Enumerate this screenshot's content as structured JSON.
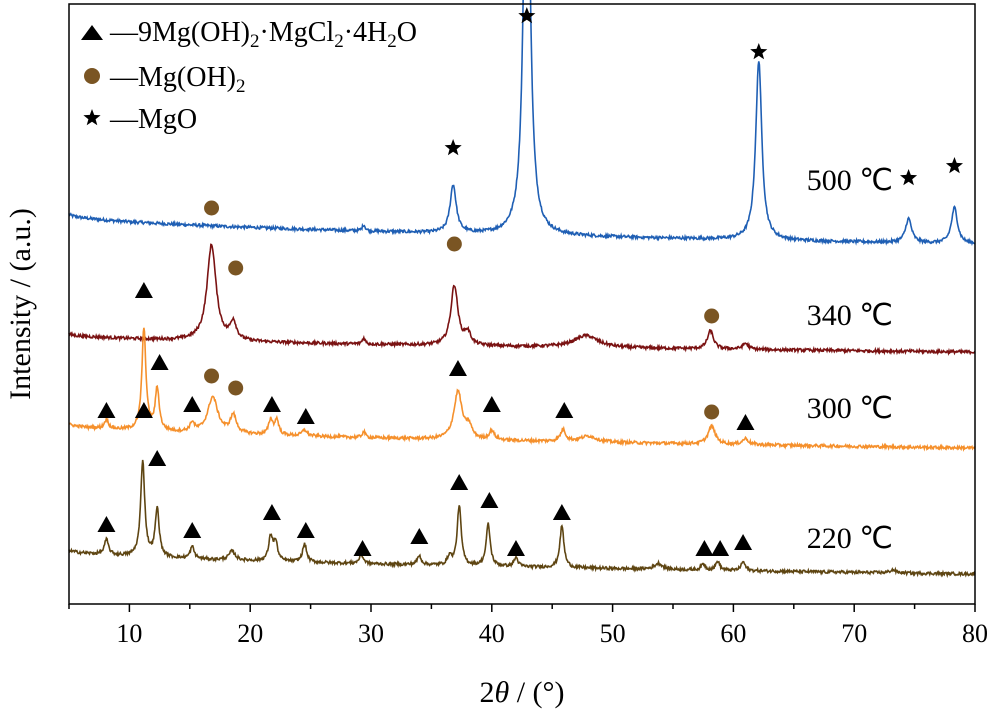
{
  "chart_data": {
    "type": "line",
    "xlabel_prefix": "2",
    "xlabel_var": "θ",
    "xlabel_suffix": " / (°)",
    "ylabel": "Intensity / (a.u.)",
    "xlim": [
      5,
      80
    ],
    "xticks": [
      10,
      20,
      30,
      40,
      50,
      60,
      70,
      80
    ],
    "ylim": [
      0,
      100
    ],
    "legend": {
      "position": "top-left",
      "entries": [
        {
          "marker": "triangle",
          "text": "—9Mg(OH)",
          "sub1": "2",
          "mid": "·MgCl",
          "sub2": "2",
          "mid2": "·4H",
          "sub3": "2",
          "end": "O"
        },
        {
          "marker": "circle",
          "text": "—Mg(OH)",
          "sub1": "2"
        },
        {
          "marker": "star",
          "text": "—MgO"
        }
      ]
    },
    "colors": {
      "500": "#1f5fb4",
      "340": "#7a1212",
      "300": "#f5902c",
      "220": "#5e4512",
      "circle_marker": "#7a5523"
    },
    "series": [
      {
        "name": "500 ℃",
        "label": "500 ℃",
        "color_key": "500",
        "baseline_start": 65,
        "baseline_end": 60,
        "peaks": [
          [
            36.8,
            8,
            0.3
          ],
          [
            42.9,
            80,
            0.3
          ],
          [
            62.1,
            30,
            0.3
          ],
          [
            74.5,
            4,
            0.3
          ],
          [
            78.3,
            6,
            0.3
          ],
          [
            29.4,
            1,
            0.15
          ]
        ],
        "markers": [
          {
            "type": "star",
            "x": 36.8,
            "y": 76
          },
          {
            "type": "star",
            "x": 42.9,
            "y": 98
          },
          {
            "type": "star",
            "x": 62.1,
            "y": 92
          },
          {
            "type": "star",
            "x": 74.5,
            "y": 71
          },
          {
            "type": "star",
            "x": 78.3,
            "y": 73
          }
        ]
      },
      {
        "name": "340 ℃",
        "label": "340 ℃",
        "color_key": "340",
        "baseline_start": 45,
        "baseline_end": 42,
        "peaks": [
          [
            16.8,
            16,
            0.45
          ],
          [
            18.6,
            3,
            0.3
          ],
          [
            36.9,
            10,
            0.35
          ],
          [
            38.0,
            2,
            0.3
          ],
          [
            47.8,
            2,
            1.2
          ],
          [
            58.1,
            3,
            0.3
          ],
          [
            61.0,
            1,
            0.3
          ],
          [
            29.4,
            1,
            0.15
          ]
        ],
        "markers": [
          {
            "type": "circle",
            "x": 16.8,
            "y": 66
          },
          {
            "type": "circle",
            "x": 18.8,
            "y": 56
          },
          {
            "type": "circle",
            "x": 36.9,
            "y": 60
          },
          {
            "type": "circle",
            "x": 58.2,
            "y": 48
          }
        ]
      },
      {
        "name": "300 ℃",
        "label": "300 ℃",
        "color_key": "300",
        "baseline_start": 30,
        "baseline_end": 26,
        "peaks": [
          [
            8.1,
            1.5,
            0.2
          ],
          [
            11.2,
            17,
            0.2
          ],
          [
            12.3,
            7,
            0.2
          ],
          [
            15.2,
            1.5,
            0.2
          ],
          [
            16.9,
            6,
            0.5
          ],
          [
            18.6,
            3,
            0.3
          ],
          [
            21.7,
            2.5,
            0.2
          ],
          [
            22.2,
            2.5,
            0.2
          ],
          [
            24.5,
            1,
            0.25
          ],
          [
            29.4,
            1,
            0.15
          ],
          [
            37.2,
            8,
            0.4
          ],
          [
            38.1,
            2,
            0.3
          ],
          [
            40.0,
            1.5,
            0.25
          ],
          [
            45.9,
            2,
            0.25
          ],
          [
            48.0,
            1,
            0.8
          ],
          [
            58.2,
            3,
            0.35
          ],
          [
            61.0,
            1,
            0.3
          ]
        ],
        "markers": [
          {
            "type": "triangle",
            "x": 8.1,
            "y": 32
          },
          {
            "type": "triangle",
            "x": 11.2,
            "y": 52
          },
          {
            "type": "triangle",
            "x": 12.5,
            "y": 40
          },
          {
            "type": "triangle",
            "x": 15.2,
            "y": 33
          },
          {
            "type": "circle",
            "x": 16.8,
            "y": 38
          },
          {
            "type": "circle",
            "x": 18.8,
            "y": 36
          },
          {
            "type": "triangle",
            "x": 21.8,
            "y": 33
          },
          {
            "type": "triangle",
            "x": 24.6,
            "y": 31
          },
          {
            "type": "triangle",
            "x": 37.2,
            "y": 39
          },
          {
            "type": "triangle",
            "x": 40.0,
            "y": 33
          },
          {
            "type": "triangle",
            "x": 46.0,
            "y": 32
          },
          {
            "type": "circle",
            "x": 58.2,
            "y": 32
          },
          {
            "type": "triangle",
            "x": 61.0,
            "y": 30
          }
        ]
      },
      {
        "name": "220 ℃",
        "label": "220 ℃",
        "color_key": "220",
        "baseline_start": 9,
        "baseline_end": 5,
        "peaks": [
          [
            8.1,
            2.5,
            0.2
          ],
          [
            11.1,
            16,
            0.2
          ],
          [
            12.3,
            8,
            0.2
          ],
          [
            15.2,
            2,
            0.2
          ],
          [
            18.5,
            1.5,
            0.3
          ],
          [
            21.7,
            4,
            0.2
          ],
          [
            22.1,
            3,
            0.2
          ],
          [
            24.5,
            3,
            0.2
          ],
          [
            29.2,
            1.5,
            0.2
          ],
          [
            34.0,
            1.5,
            0.2
          ],
          [
            36.5,
            1.5,
            0.2
          ],
          [
            37.3,
            10,
            0.2
          ],
          [
            39.7,
            7,
            0.2
          ],
          [
            42.0,
            1.5,
            0.2
          ],
          [
            45.8,
            7,
            0.2
          ],
          [
            53.8,
            1,
            0.4
          ],
          [
            57.5,
            1,
            0.2
          ],
          [
            58.7,
            1.5,
            0.2
          ],
          [
            60.8,
            1.5,
            0.2
          ],
          [
            73.2,
            0.5,
            0.3
          ]
        ],
        "markers": [
          {
            "type": "triangle",
            "x": 8.1,
            "y": 13
          },
          {
            "type": "triangle",
            "x": 11.2,
            "y": 32
          },
          {
            "type": "triangle",
            "x": 12.3,
            "y": 24
          },
          {
            "type": "triangle",
            "x": 15.2,
            "y": 12
          },
          {
            "type": "triangle",
            "x": 21.8,
            "y": 15
          },
          {
            "type": "triangle",
            "x": 24.6,
            "y": 12
          },
          {
            "type": "triangle",
            "x": 29.3,
            "y": 9
          },
          {
            "type": "triangle",
            "x": 34.0,
            "y": 11
          },
          {
            "type": "triangle",
            "x": 37.3,
            "y": 20
          },
          {
            "type": "triangle",
            "x": 39.8,
            "y": 17
          },
          {
            "type": "triangle",
            "x": 42.0,
            "y": 9
          },
          {
            "type": "triangle",
            "x": 45.8,
            "y": 15
          },
          {
            "type": "triangle",
            "x": 57.6,
            "y": 9
          },
          {
            "type": "triangle",
            "x": 58.9,
            "y": 9
          },
          {
            "type": "triangle",
            "x": 60.8,
            "y": 10
          }
        ]
      }
    ]
  }
}
